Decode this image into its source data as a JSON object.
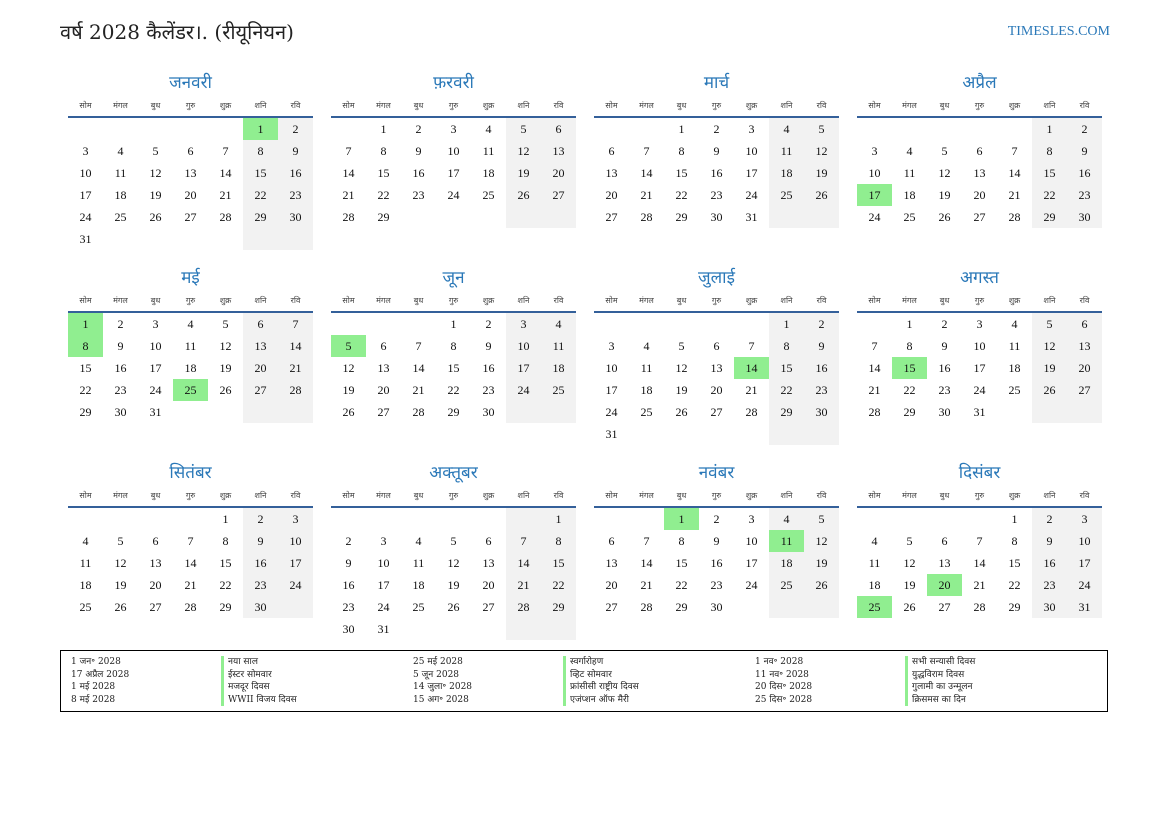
{
  "header": {
    "title": "वर्ष 2028 कैलेंडर।. (रीयूनियन)",
    "site": "TIMESLES.COM"
  },
  "weekdays": [
    "सोम",
    "मंगल",
    "बुध",
    "गुरु",
    "शुक्र",
    "शनि",
    "रवि"
  ],
  "colors": {
    "accent": "#2a78b8",
    "holiday": "#90ee90",
    "weekend": "#f2f2f2",
    "rule": "#34609a"
  },
  "months": [
    {
      "name": "जनवरी",
      "start": 5,
      "days": 31,
      "holidays": [
        1
      ]
    },
    {
      "name": "फ़रवरी",
      "start": 1,
      "days": 29,
      "holidays": []
    },
    {
      "name": "मार्च",
      "start": 2,
      "days": 31,
      "holidays": []
    },
    {
      "name": "अप्रैल",
      "start": 5,
      "days": 30,
      "holidays": [
        17
      ]
    },
    {
      "name": "मई",
      "start": 0,
      "days": 31,
      "holidays": [
        1,
        8,
        25
      ]
    },
    {
      "name": "जून",
      "start": 3,
      "days": 30,
      "holidays": [
        5
      ]
    },
    {
      "name": "जुलाई",
      "start": 5,
      "days": 31,
      "holidays": [
        14
      ]
    },
    {
      "name": "अगस्त",
      "start": 1,
      "days": 31,
      "holidays": [
        15
      ]
    },
    {
      "name": "सितंबर",
      "start": 4,
      "days": 30,
      "holidays": []
    },
    {
      "name": "अक्तूबर",
      "start": 6,
      "days": 31,
      "holidays": []
    },
    {
      "name": "नवंबर",
      "start": 2,
      "days": 30,
      "holidays": [
        1,
        11
      ]
    },
    {
      "name": "दिसंबर",
      "start": 4,
      "days": 31,
      "holidays": [
        20,
        25
      ]
    }
  ],
  "legend": [
    [
      {
        "date": "1 जन॰ 2028",
        "name": "नया साल"
      },
      {
        "date": "17 अप्रैल 2028",
        "name": "ईस्टर सोमवार"
      },
      {
        "date": "1 मई 2028",
        "name": "मजदूर दिवस"
      },
      {
        "date": "8 मई 2028",
        "name": "WWII विजय दिवस"
      }
    ],
    [
      {
        "date": "25 मई 2028",
        "name": "स्वर्गारोहण"
      },
      {
        "date": "5 जून 2028",
        "name": "व्हिट सोमवार"
      },
      {
        "date": "14 जुला॰ 2028",
        "name": "फ्रांसीसी राष्ट्रीय दिवस"
      },
      {
        "date": "15 अग॰ 2028",
        "name": "एजंप्शन ऑफ मैरी"
      }
    ],
    [
      {
        "date": "1 नव॰ 2028",
        "name": "सभी सन्यासी दिवस"
      },
      {
        "date": "11 नव॰ 2028",
        "name": "युद्धविराम दिवस"
      },
      {
        "date": "20 दिस॰ 2028",
        "name": "गुलामी का उन्मूलन"
      },
      {
        "date": "25 दिस॰ 2028",
        "name": "क्रिसमस का दिन"
      }
    ]
  ]
}
